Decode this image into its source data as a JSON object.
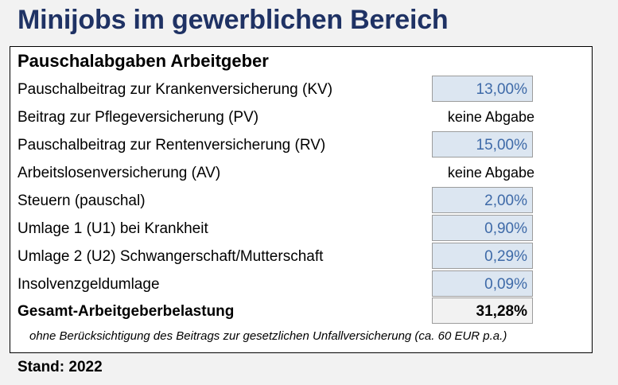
{
  "title": "Minijobs im gewerblichen Bereich",
  "table": {
    "heading": "Pauschalabgaben Arbeitgeber",
    "rows": [
      {
        "label": "Pauschalbeitrag zur Krankenversicherung (KV)",
        "value": "13,00%"
      },
      {
        "label": "Beitrag zur Pflegeversicherung (PV)",
        "value": "keine Abgabe"
      },
      {
        "label": "Pauschalbeitrag zur Rentenversicherung (RV)",
        "value": "15,00%"
      },
      {
        "label": "Arbeitslosenversicherung (AV)",
        "value": "keine Abgabe"
      },
      {
        "label": "Steuern (pauschal)",
        "value": "2,00%"
      },
      {
        "label": "Umlage 1 (U1) bei Krankheit",
        "value": "0,90%"
      },
      {
        "label": "Umlage 2 (U2) Schwangerschaft/Mutterschaft",
        "value": "0,29%"
      },
      {
        "label": "Insolvenzgeldumlage",
        "value": "0,09%"
      }
    ],
    "total": {
      "label": "Gesamt-Arbeitgeberbelastung",
      "value": "31,28%"
    },
    "footnote": "ohne Berücksichtigung des Beitrags zur gesetzlichen Unfallversicherung (ca. 60 EUR p.a.)"
  },
  "stand": "Stand: 2022",
  "colors": {
    "title": "#1f3264",
    "input_cell_bg": "#dce6f1",
    "input_cell_text": "#3e6aa8",
    "total_cell_bg": "#f2f2f2"
  }
}
